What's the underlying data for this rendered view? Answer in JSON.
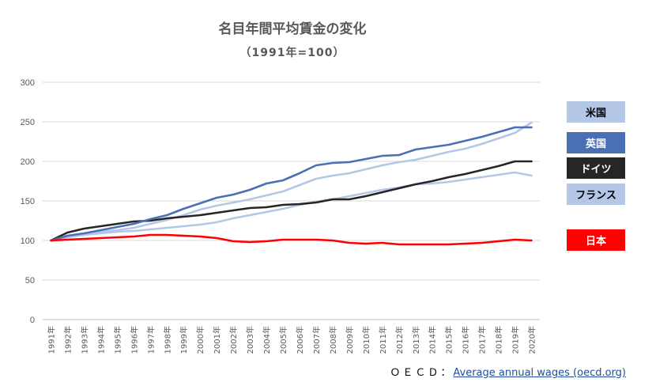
{
  "chart_data": {
    "type": "line",
    "title": "名目年間平均賃金の変化",
    "subtitle": "（1991年=100）",
    "categories": [
      "1991年",
      "1992年",
      "1993年",
      "1994年",
      "1995年",
      "1996年",
      "1997年",
      "1998年",
      "1999年",
      "2000年",
      "2001年",
      "2002年",
      "2003年",
      "2004年",
      "2005年",
      "2006年",
      "2007年",
      "2008年",
      "2009年",
      "2010年",
      "2011年",
      "2012年",
      "2013年",
      "2014年",
      "2015年",
      "2016年",
      "2017年",
      "2018年",
      "2019年",
      "2020年"
    ],
    "y_ticks": [
      "0",
      "50",
      "100",
      "150",
      "200",
      "250",
      "300"
    ],
    "ylim": [
      0,
      300
    ],
    "grid": true,
    "legend_position": "right",
    "series": [
      {
        "name": "米国",
        "color": "#b4c7e7",
        "text_color": "#000000",
        "values": [
          100,
          104,
          108,
          111,
          113,
          116,
          121,
          126,
          132,
          139,
          144,
          148,
          152,
          157,
          162,
          170,
          178,
          182,
          185,
          190,
          195,
          199,
          202,
          207,
          212,
          216,
          222,
          229,
          236,
          249
        ]
      },
      {
        "name": "英国",
        "color": "#4a6fb5",
        "text_color": "#ffffff",
        "values": [
          100,
          106,
          109,
          113,
          117,
          121,
          127,
          132,
          140,
          147,
          154,
          158,
          164,
          172,
          176,
          185,
          195,
          198,
          199,
          203,
          207,
          208,
          215,
          218,
          221,
          226,
          231,
          237,
          243,
          243
        ]
      },
      {
        "name": "ドイツ",
        "color": "#262626",
        "text_color": "#ffffff",
        "values": [
          100,
          110,
          115,
          118,
          121,
          124,
          125,
          128,
          130,
          132,
          135,
          138,
          141,
          142,
          145,
          146,
          148,
          152,
          152,
          156,
          161,
          166,
          171,
          175,
          180,
          184,
          189,
          194,
          200,
          200
        ]
      },
      {
        "name": "フランス",
        "color": "#b4c7e7",
        "text_color": "#000000",
        "values": [
          100,
          104,
          107,
          109,
          111,
          112,
          114,
          116,
          118,
          120,
          123,
          128,
          132,
          136,
          140,
          145,
          149,
          152,
          156,
          160,
          164,
          167,
          171,
          172,
          174,
          177,
          180,
          183,
          186,
          182
        ]
      },
      {
        "name": "日本",
        "color": "#ff0000",
        "text_color": "#ffffff",
        "values": [
          100,
          101,
          102,
          103,
          104,
          105,
          107,
          107,
          106,
          105,
          103,
          99,
          98,
          99,
          101,
          101,
          101,
          100,
          97,
          96,
          97,
          95,
          95,
          95,
          95,
          96,
          97,
          99,
          101,
          100
        ]
      }
    ]
  },
  "source": {
    "prefix": "ＯＥＣＤ：",
    "link_text": "Average annual wages (oecd.org)"
  }
}
